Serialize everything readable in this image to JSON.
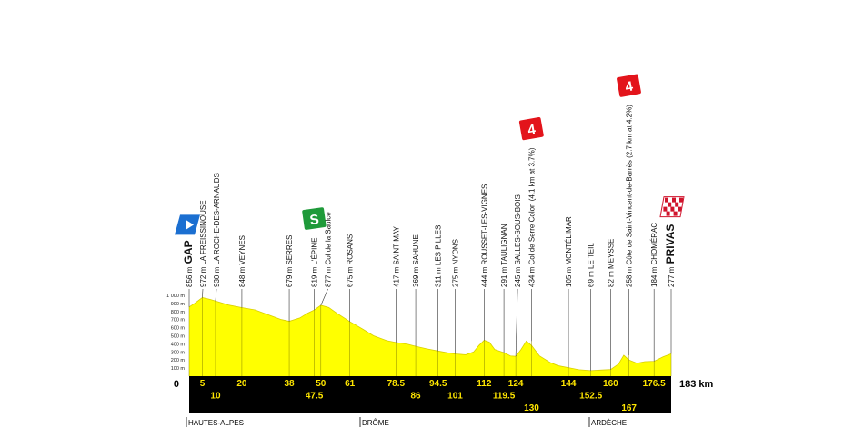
{
  "chart_data": {
    "type": "area",
    "color": "#ffff00",
    "x": [
      0,
      2,
      5,
      8,
      10,
      15,
      20,
      25,
      30,
      35,
      38,
      42,
      45,
      47.5,
      50,
      53,
      56,
      61,
      66,
      70,
      75,
      78.5,
      83,
      86,
      90,
      94.5,
      98,
      101,
      105,
      108,
      110,
      112,
      114,
      116,
      119.5,
      122,
      124,
      126,
      128,
      130,
      133,
      137,
      140,
      144,
      148,
      152.5,
      156,
      160,
      163,
      165,
      167,
      170,
      173,
      176.5,
      180,
      183
    ],
    "values": [
      856,
      900,
      972,
      950,
      930,
      880,
      848,
      820,
      760,
      700,
      679,
      720,
      780,
      819,
      877,
      850,
      780,
      675,
      580,
      500,
      440,
      417,
      395,
      369,
      340,
      311,
      290,
      275,
      265,
      300,
      380,
      444,
      420,
      330,
      291,
      250,
      245,
      330,
      434,
      380,
      250,
      170,
      130,
      105,
      80,
      69,
      75,
      82,
      150,
      258,
      200,
      160,
      180,
      184,
      240,
      277
    ],
    "xlim": [
      0,
      183
    ],
    "xticks": [
      0,
      {
        "value": 183,
        "label": "183 km"
      }
    ],
    "ylim": [
      0,
      1000
    ],
    "yticks": [
      {
        "value": 100,
        "label": "100 m"
      },
      {
        "value": 200,
        "label": "200 m"
      },
      {
        "value": 300,
        "label": "300 m"
      },
      {
        "value": 400,
        "label": "400 m"
      },
      {
        "value": 500,
        "label": "500 m"
      },
      {
        "value": 600,
        "label": "600 m"
      },
      {
        "value": 700,
        "label": "700 m"
      },
      {
        "value": 800,
        "label": "800 m"
      },
      {
        "value": 900,
        "label": "900 m"
      },
      {
        "value": 1000,
        "label": "1 000 m"
      }
    ],
    "waypoints": {
      "km": [
        0,
        5,
        10,
        20,
        38,
        47.5,
        50,
        61,
        78.5,
        86,
        94.5,
        101,
        112,
        119.5,
        124,
        130,
        144,
        152.5,
        160,
        167,
        176.5,
        183
      ],
      "elevations": [
        856,
        972,
        930,
        848,
        679,
        819,
        877,
        675,
        417,
        369,
        311,
        275,
        444,
        291,
        245,
        434,
        105,
        69,
        82,
        258,
        184,
        277
      ],
      "elevation_labels": [
        "856 m",
        "972 m",
        "930 m",
        "848 m",
        "679 m",
        "819 m",
        "877 m",
        "675 m",
        "417 m",
        "369 m",
        "311 m",
        "275 m",
        "444 m",
        "291 m",
        "245 m",
        "434 m",
        "105 m",
        "69 m",
        "82 m",
        "258 m",
        "184 m",
        "277 m"
      ],
      "names": [
        "GAP",
        "LA FREISSINOUSE",
        "LA ROCHE-DES-ARNAUDS",
        "VEYNES",
        "SERRES",
        "L'ÉPINE",
        "Col de la Saulce",
        "ROSANS",
        "SAINT-MAY",
        "SAHUNE",
        "LES PILLES",
        "NYONS",
        "ROUSSET-LES-VIGNES",
        "TAULIGNAN",
        "SALLES-SOUS-BOIS",
        "Col de Serre Colon (4.1 km at 3.7%)",
        "MONTÉLIMAR",
        "LE TEIL",
        "MEYSSE",
        "Côte de Saint-Vincent-de-Barrès (2.7 km at 4.2%)",
        "CHOMÉRAC",
        "PRIVAS"
      ],
      "badges": [
        null,
        null,
        null,
        null,
        null,
        "S",
        null,
        null,
        null,
        null,
        null,
        null,
        null,
        null,
        null,
        4,
        null,
        null,
        null,
        4,
        null,
        null
      ]
    },
    "regions": [
      "HAUTES-ALPES",
      "DRÔME",
      "ARDÈCHE"
    ]
  }
}
